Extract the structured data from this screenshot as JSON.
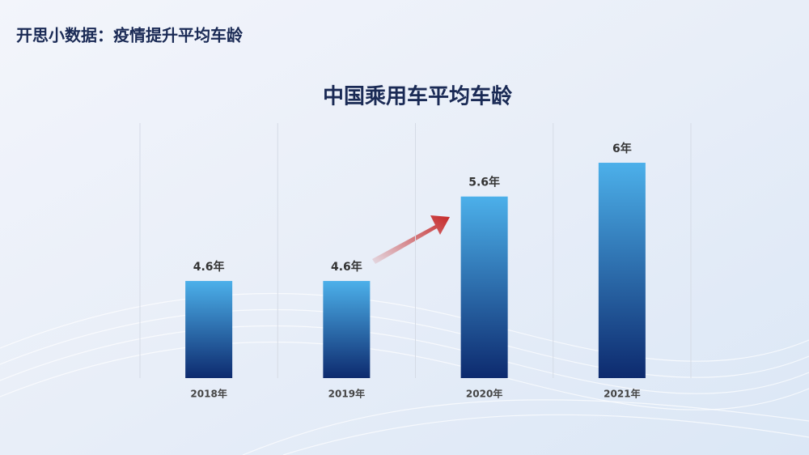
{
  "header": {
    "title": "开思小数据：疫情提升平均车龄"
  },
  "chart_data": {
    "type": "bar",
    "title": "中国乘用车平均车龄",
    "categories": [
      "2018年",
      "2019年",
      "2020年",
      "2021年"
    ],
    "values": [
      4.6,
      4.6,
      5.6,
      6
    ],
    "value_labels": [
      "4.6年",
      "4.6年",
      "5.6年",
      "6年"
    ],
    "color": "#0d2a6e",
    "ylim": [
      3.45,
      6.47
    ],
    "grid": true
  }
}
